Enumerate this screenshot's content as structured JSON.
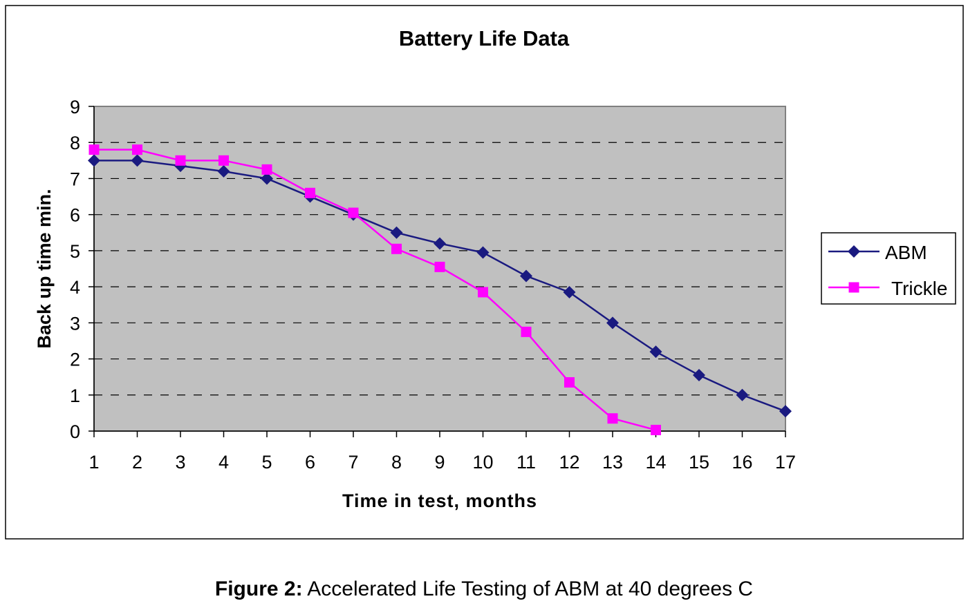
{
  "chart_data": {
    "type": "line",
    "title": "Battery Life Data",
    "xlabel": "Time in test, months",
    "ylabel": "Back up time min.",
    "x": [
      1,
      2,
      3,
      4,
      5,
      6,
      7,
      8,
      9,
      10,
      11,
      12,
      13,
      14,
      15,
      16,
      17
    ],
    "xlim": [
      1,
      17
    ],
    "ylim": [
      0,
      9
    ],
    "yticks": [
      0,
      1,
      2,
      3,
      4,
      5,
      6,
      7,
      8,
      9
    ],
    "grid": "horizontal-dashed",
    "legend_position": "right",
    "plot_background": "#c0c0c0",
    "series": [
      {
        "name": "ABM",
        "color": "#1a1a80",
        "marker": "diamond",
        "x": [
          1,
          2,
          3,
          4,
          5,
          6,
          7,
          8,
          9,
          10,
          11,
          12,
          13,
          14,
          15,
          16,
          17
        ],
        "values": [
          7.5,
          7.5,
          7.35,
          7.2,
          7.0,
          6.5,
          6.0,
          5.5,
          5.2,
          4.95,
          4.3,
          3.85,
          3.0,
          2.2,
          1.55,
          1.0,
          0.55
        ]
      },
      {
        "name": "Trickle",
        "color": "#ff00ff",
        "marker": "square",
        "x": [
          1,
          2,
          3,
          4,
          5,
          6,
          7,
          8,
          9,
          10,
          11,
          12,
          13,
          14
        ],
        "values": [
          7.8,
          7.8,
          7.5,
          7.5,
          7.25,
          6.6,
          6.05,
          5.05,
          4.55,
          3.85,
          2.75,
          1.35,
          0.35,
          0.03
        ]
      }
    ]
  },
  "caption": {
    "label": "Figure 2:",
    "text": " Accelerated Life Testing of ABM at 40 degrees C"
  }
}
